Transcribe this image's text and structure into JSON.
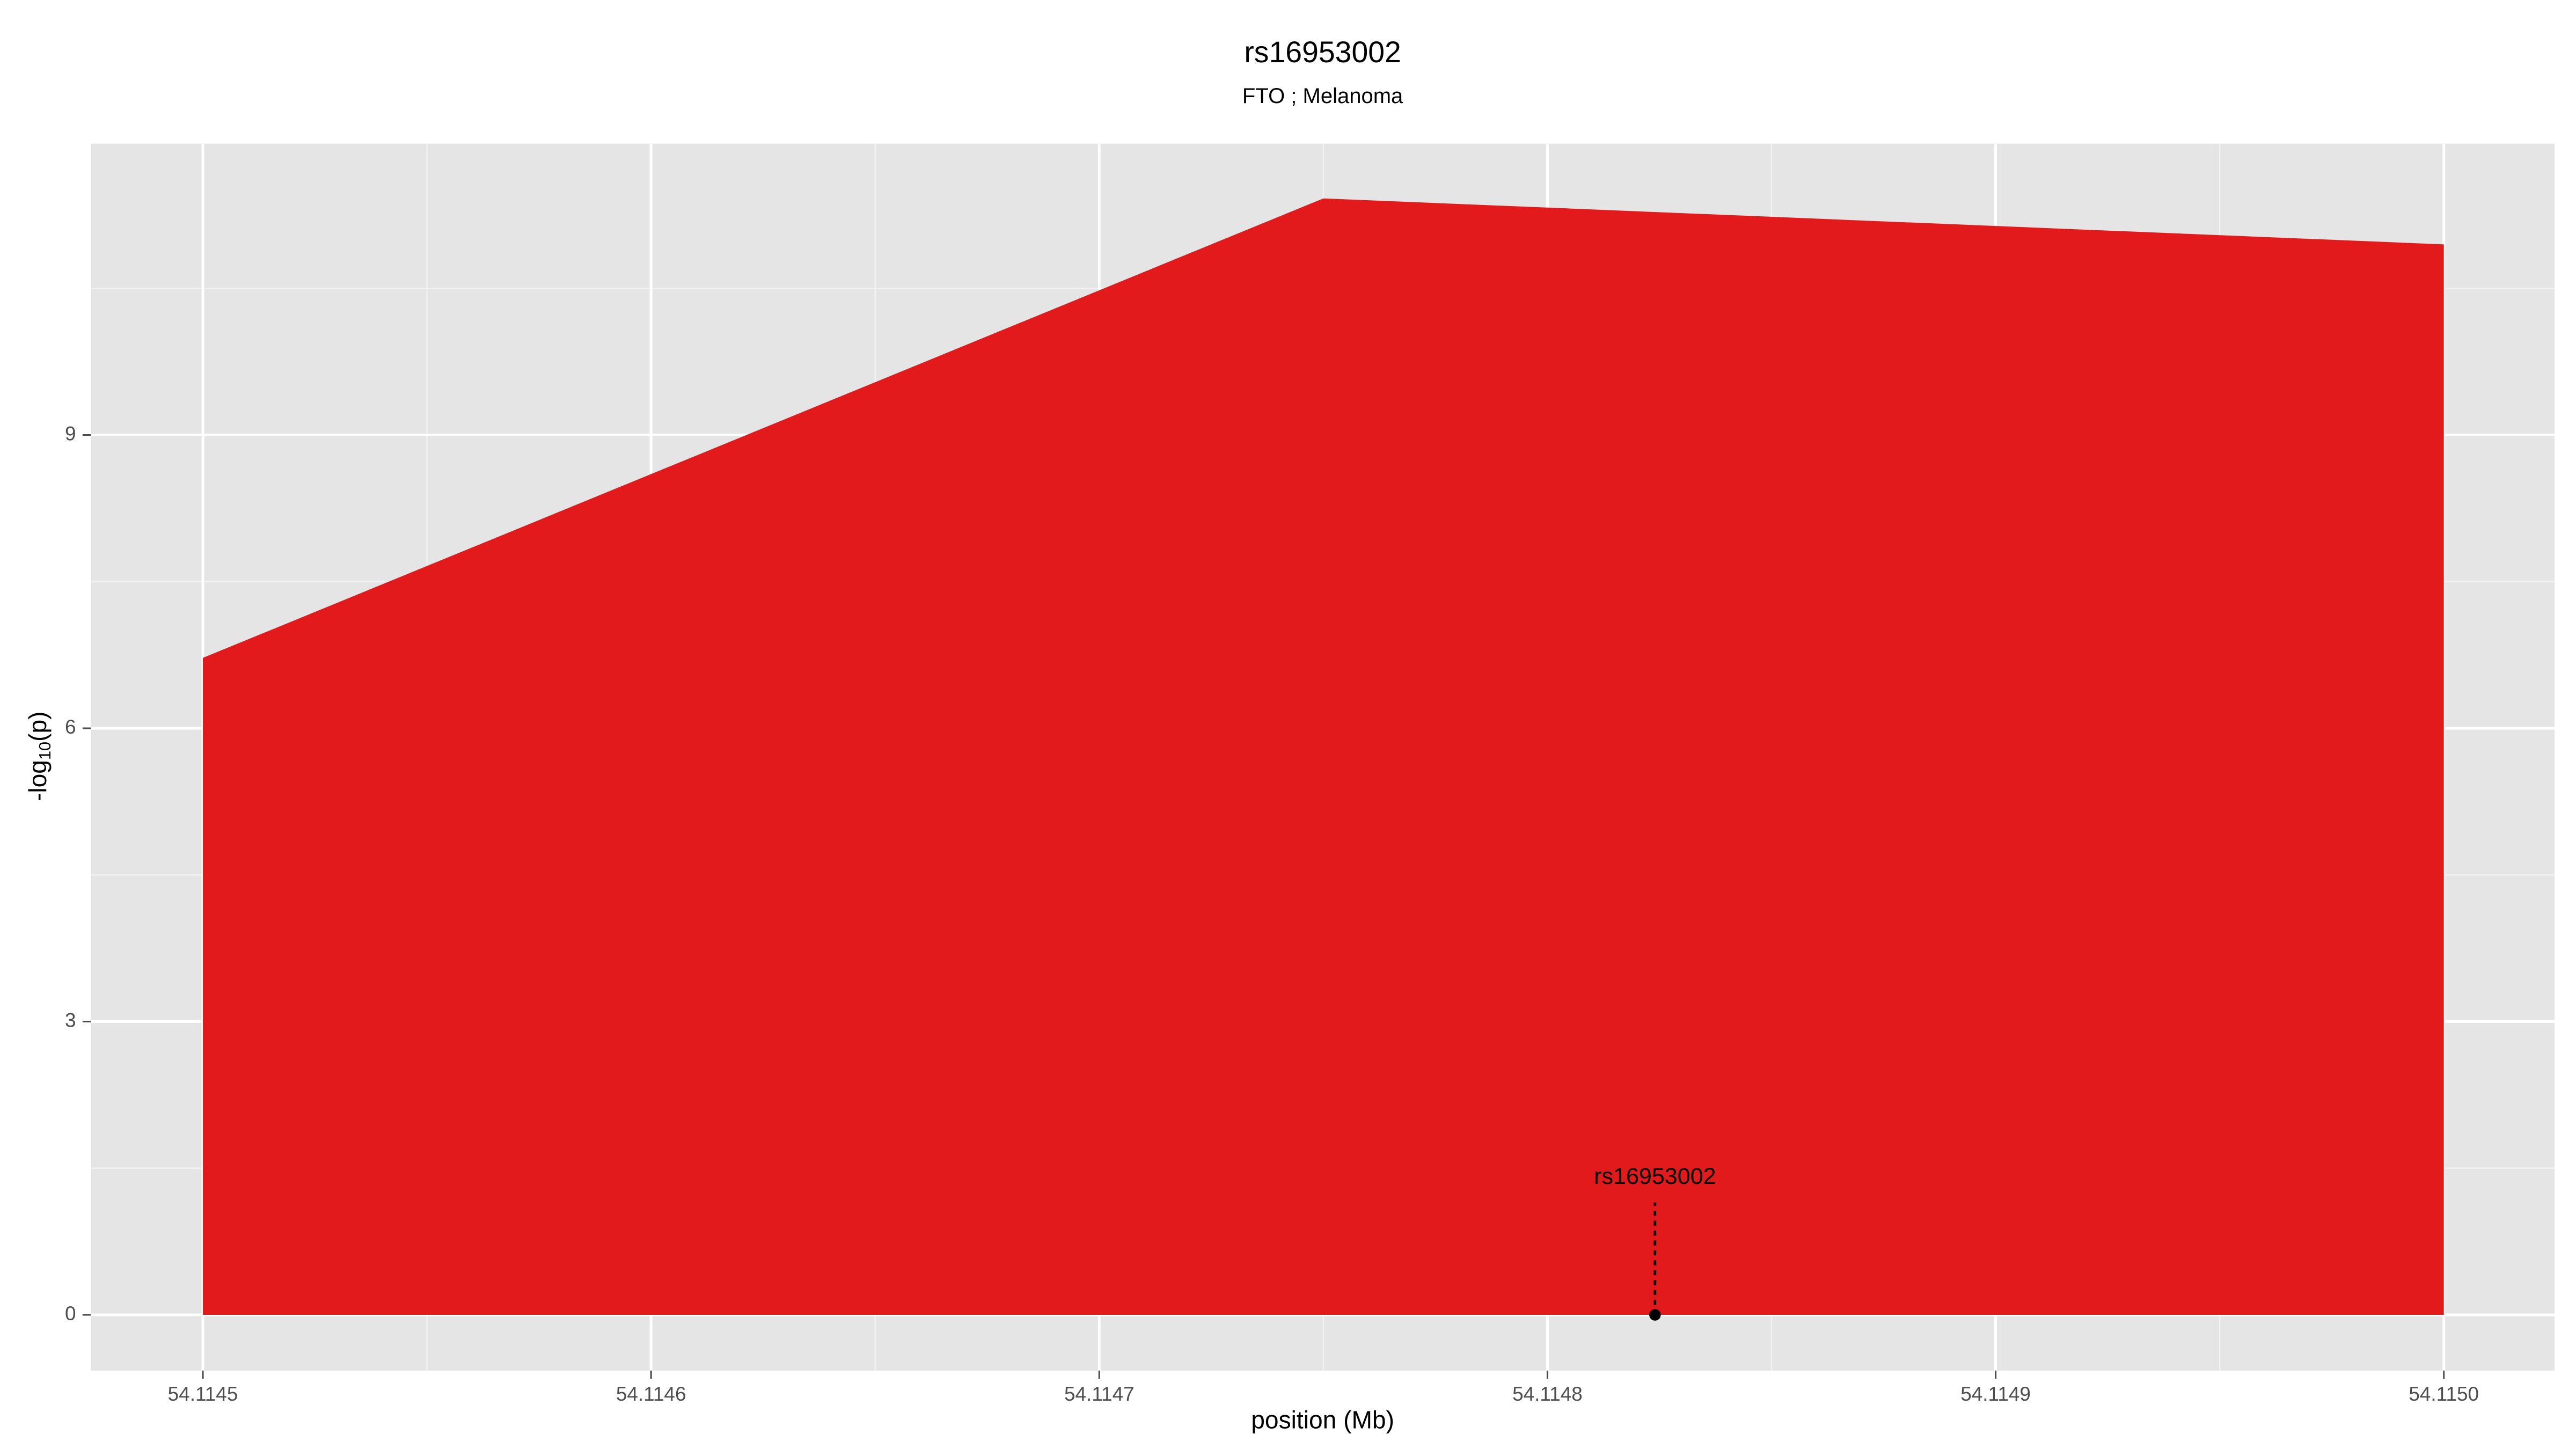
{
  "chart_data": {
    "type": "area",
    "title": "rs16953002",
    "subtitle": "FTO ; Melanoma",
    "xlabel": "position (Mb)",
    "ylabel": [
      "-log",
      "10",
      "(p)"
    ],
    "x": [
      54.1145,
      54.11475,
      54.115
    ],
    "series": [
      {
        "color": "#e31a1c",
        "values": [
          6.72,
          11.42,
          10.95
        ]
      }
    ],
    "xlim": [
      54.114475,
      54.1150247
    ],
    "ylim": [
      -0.57,
      11.98
    ],
    "xticks": [
      54.1145,
      54.1146,
      54.1147,
      54.1148,
      54.1149,
      {
        "value": 54.115,
        "label": "54.1150"
      }
    ],
    "yticks": [
      0,
      3,
      6,
      9
    ],
    "x_minor_ticks": [
      54.11455,
      54.11465,
      54.11475,
      54.11485,
      54.11495
    ],
    "y_minor_ticks": [
      1.5,
      4.5,
      7.5,
      10.5
    ],
    "grid": true,
    "annotations": [
      {
        "text": "rs16953002",
        "x": 54.114824,
        "y": 0
      }
    ]
  }
}
